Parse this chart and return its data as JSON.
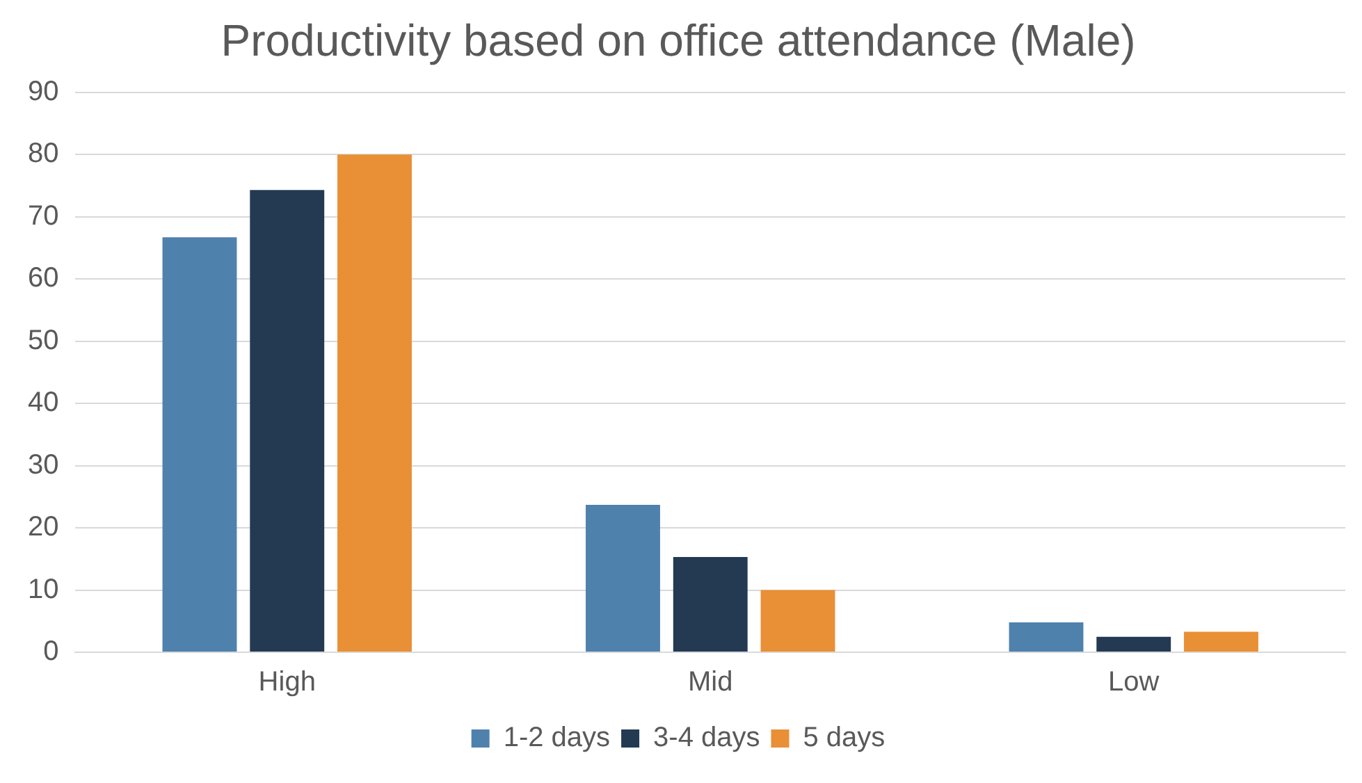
{
  "chart_data": {
    "type": "bar",
    "title": "Productivity based on office attendance (Male)",
    "categories": [
      "High",
      "Mid",
      "Low"
    ],
    "series": [
      {
        "name": "1-2 days",
        "color": "#4f81ad",
        "values": [
          66.7,
          23.7,
          4.8
        ]
      },
      {
        "name": "3-4 days",
        "color": "#243a53",
        "values": [
          74.3,
          15.3,
          2.5
        ]
      },
      {
        "name": "5 days",
        "color": "#e98f35",
        "values": [
          80,
          10,
          3.3
        ]
      }
    ],
    "ylim": [
      0,
      90
    ],
    "yticks": [
      0,
      10,
      20,
      30,
      40,
      50,
      60,
      70,
      80,
      90
    ],
    "grid": "y",
    "legend": "bottom"
  }
}
